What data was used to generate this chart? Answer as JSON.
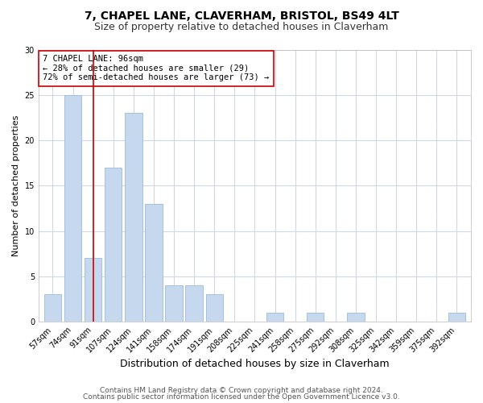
{
  "title1": "7, CHAPEL LANE, CLAVERHAM, BRISTOL, BS49 4LT",
  "title2": "Size of property relative to detached houses in Claverham",
  "xlabel": "Distribution of detached houses by size in Claverham",
  "ylabel": "Number of detached properties",
  "bar_labels": [
    "57sqm",
    "74sqm",
    "91sqm",
    "107sqm",
    "124sqm",
    "141sqm",
    "158sqm",
    "174sqm",
    "191sqm",
    "208sqm",
    "225sqm",
    "241sqm",
    "258sqm",
    "275sqm",
    "292sqm",
    "308sqm",
    "325sqm",
    "342sqm",
    "359sqm",
    "375sqm",
    "392sqm"
  ],
  "bar_values": [
    3,
    25,
    7,
    17,
    23,
    13,
    4,
    4,
    3,
    0,
    0,
    1,
    0,
    1,
    0,
    1,
    0,
    0,
    0,
    0,
    1
  ],
  "bar_color": "#c5d8ee",
  "bar_edge_color": "#9abcd8",
  "vline_x": 2,
  "vline_color": "#cc0000",
  "annotation_text": "7 CHAPEL LANE: 96sqm\n← 28% of detached houses are smaller (29)\n72% of semi-detached houses are larger (73) →",
  "annotation_box_color": "#ffffff",
  "annotation_box_edge": "#cc0000",
  "ylim": [
    0,
    30
  ],
  "yticks": [
    0,
    5,
    10,
    15,
    20,
    25,
    30
  ],
  "footer1": "Contains HM Land Registry data © Crown copyright and database right 2024.",
  "footer2": "Contains public sector information licensed under the Open Government Licence v3.0.",
  "bg_color": "#ffffff",
  "plot_bg_color": "#ffffff",
  "grid_color": "#d0d8e8",
  "title1_fontsize": 10,
  "title2_fontsize": 9,
  "xlabel_fontsize": 9,
  "ylabel_fontsize": 8,
  "tick_fontsize": 7,
  "footer_fontsize": 6.5
}
